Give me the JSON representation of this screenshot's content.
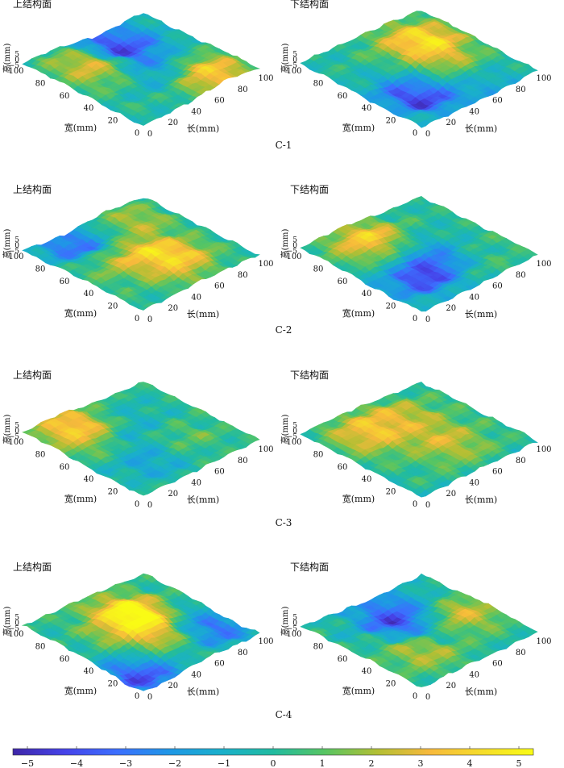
{
  "chart_data": {
    "type": "surface-3d",
    "colorbar": {
      "min": -5,
      "max": 5,
      "ticks": [
        "−5",
        "−4",
        "−3",
        "−2",
        "−1",
        "0",
        "1",
        "2",
        "3",
        "4",
        "5"
      ],
      "colors": [
        "#3e26a8",
        "#4643e9",
        "#3c6ffe",
        "#1f97e6",
        "#1ab0cb",
        "#21bba0",
        "#58c562",
        "#b2bf34",
        "#f7b93c",
        "#f5dc2b",
        "#f9fb15"
      ]
    },
    "axes": {
      "x_label": "长(mm)",
      "y_label": "宽(mm)",
      "z_label": "高(mm)",
      "x_ticks": [
        "0",
        "20",
        "40",
        "60",
        "80",
        "100"
      ],
      "y_ticks": [
        "0",
        "20",
        "40",
        "60",
        "80",
        "100"
      ],
      "z_ticks": [
        "5",
        "0",
        "−5"
      ],
      "x_range": [
        0,
        100
      ],
      "y_range": [
        0,
        100
      ],
      "z_range": [
        -5,
        5
      ]
    },
    "specimens": [
      {
        "id": "C-1",
        "panels": [
          {
            "title": "上结构面",
            "peaks": [
              [
                70,
                15,
                4.5
              ],
              [
                30,
                70,
                3.5
              ],
              [
                60,
                80,
                -4.5
              ],
              [
                55,
                35,
                -2.5
              ]
            ],
            "seed": 11
          },
          {
            "title": "下结构面",
            "peaks": [
              [
                30,
                30,
                -4.5
              ],
              [
                60,
                35,
                3
              ],
              [
                65,
                15,
                -2
              ],
              [
                70,
                70,
                4
              ]
            ],
            "seed": 23
          }
        ]
      },
      {
        "id": "C-2",
        "panels": [
          {
            "title": "上结构面",
            "peaks": [
              [
                55,
                30,
                4
              ],
              [
                30,
                60,
                3
              ],
              [
                30,
                80,
                -4.5
              ],
              [
                70,
                80,
                2
              ]
            ],
            "seed": 37
          },
          {
            "title": "下结构面",
            "peaks": [
              [
                50,
                40,
                -3.5
              ],
              [
                25,
                30,
                -2.5
              ],
              [
                35,
                75,
                4
              ],
              [
                70,
                25,
                1
              ]
            ],
            "seed": 41
          }
        ]
      },
      {
        "id": "C-3",
        "panels": [
          {
            "title": "上结构面",
            "peaks": [
              [
                25,
                80,
                4
              ],
              [
                60,
                35,
                2
              ],
              [
                40,
                30,
                -2
              ],
              [
                55,
                60,
                -1.5
              ]
            ],
            "seed": 53
          },
          {
            "title": "下结构面",
            "peaks": [
              [
                55,
                35,
                3
              ],
              [
                30,
                70,
                3.5
              ],
              [
                60,
                70,
                2.5
              ],
              [
                50,
                55,
                -2
              ]
            ],
            "seed": 67
          }
        ]
      },
      {
        "id": "C-4",
        "panels": [
          {
            "title": "上结构面",
            "peaks": [
              [
                55,
                65,
                4.5
              ],
              [
                45,
                40,
                3
              ],
              [
                15,
                15,
                -4
              ],
              [
                85,
                25,
                -3
              ]
            ],
            "seed": 71
          },
          {
            "title": "下结构面",
            "peaks": [
              [
                75,
                45,
                4
              ],
              [
                55,
                40,
                -3
              ],
              [
                35,
                30,
                3
              ],
              [
                55,
                75,
                -4
              ]
            ],
            "seed": 83
          }
        ]
      }
    ]
  }
}
